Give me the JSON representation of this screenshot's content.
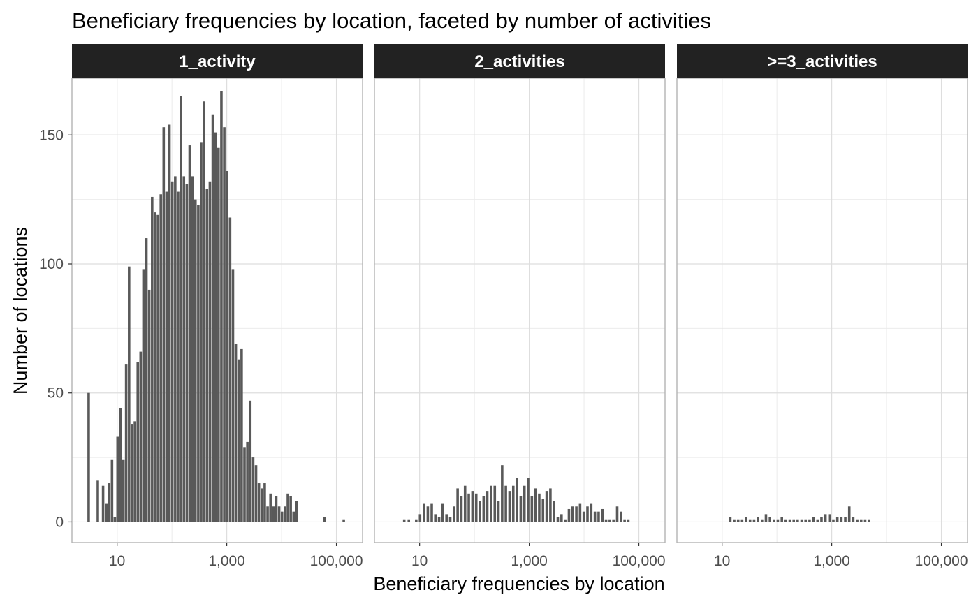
{
  "chart_data": {
    "type": "bar",
    "title": "Beneficiary frequencies by location, faceted by number of activities",
    "xlabel": "Beneficiary frequencies by location",
    "ylabel": "Number of locations",
    "x_scale": "log10",
    "xlim": [
      1.5,
      300000
    ],
    "ylim": [
      -8,
      172
    ],
    "x_ticks": [
      {
        "value": 10,
        "label": "10"
      },
      {
        "value": 1000,
        "label": "1,000"
      },
      {
        "value": 100000,
        "label": "100,000"
      }
    ],
    "y_ticks": [
      {
        "value": 0,
        "label": "0"
      },
      {
        "value": 50,
        "label": "50"
      },
      {
        "value": 100,
        "label": "100"
      },
      {
        "value": 150,
        "label": "150"
      }
    ],
    "grid": true,
    "bar_color": "#595959",
    "strip_color": "#222222",
    "panels": [
      {
        "label": "1_activity",
        "bins": [
          {
            "x": 3.0,
            "count": 50
          },
          {
            "x": 4.4,
            "count": 16
          },
          {
            "x": 5.5,
            "count": 14
          },
          {
            "x": 6.3,
            "count": 7
          },
          {
            "x": 7.1,
            "count": 15
          },
          {
            "x": 8.0,
            "count": 24
          },
          {
            "x": 9.0,
            "count": 2
          },
          {
            "x": 10.1,
            "count": 33
          },
          {
            "x": 11.4,
            "count": 44
          },
          {
            "x": 12.9,
            "count": 24
          },
          {
            "x": 14.5,
            "count": 61
          },
          {
            "x": 16.4,
            "count": 99
          },
          {
            "x": 18.5,
            "count": 38
          },
          {
            "x": 20.9,
            "count": 39
          },
          {
            "x": 23.6,
            "count": 62
          },
          {
            "x": 26.6,
            "count": 66
          },
          {
            "x": 30.0,
            "count": 98
          },
          {
            "x": 33.9,
            "count": 110
          },
          {
            "x": 38.2,
            "count": 90
          },
          {
            "x": 43.2,
            "count": 126
          },
          {
            "x": 48.7,
            "count": 120
          },
          {
            "x": 55.0,
            "count": 119
          },
          {
            "x": 62.1,
            "count": 127
          },
          {
            "x": 70.1,
            "count": 153
          },
          {
            "x": 79.1,
            "count": 128
          },
          {
            "x": 89.3,
            "count": 154
          },
          {
            "x": 100.8,
            "count": 132
          },
          {
            "x": 113.8,
            "count": 134
          },
          {
            "x": 128.5,
            "count": 128
          },
          {
            "x": 145.0,
            "count": 165
          },
          {
            "x": 163.7,
            "count": 134
          },
          {
            "x": 184.8,
            "count": 131
          },
          {
            "x": 208.6,
            "count": 146
          },
          {
            "x": 235.5,
            "count": 134
          },
          {
            "x": 265.9,
            "count": 125
          },
          {
            "x": 300.2,
            "count": 123
          },
          {
            "x": 338.9,
            "count": 147
          },
          {
            "x": 382.5,
            "count": 163
          },
          {
            "x": 431.8,
            "count": 129
          },
          {
            "x": 487.5,
            "count": 132
          },
          {
            "x": 550.3,
            "count": 158
          },
          {
            "x": 621.2,
            "count": 151
          },
          {
            "x": 701.3,
            "count": 145
          },
          {
            "x": 791.7,
            "count": 167
          },
          {
            "x": 893.8,
            "count": 153
          },
          {
            "x": 1009,
            "count": 136
          },
          {
            "x": 1139,
            "count": 118
          },
          {
            "x": 1286,
            "count": 98
          },
          {
            "x": 1451,
            "count": 69
          },
          {
            "x": 1639,
            "count": 63
          },
          {
            "x": 1850,
            "count": 67
          },
          {
            "x": 2088,
            "count": 29
          },
          {
            "x": 2358,
            "count": 31
          },
          {
            "x": 2662,
            "count": 47
          },
          {
            "x": 3005,
            "count": 25
          },
          {
            "x": 3392,
            "count": 22
          },
          {
            "x": 3829,
            "count": 15
          },
          {
            "x": 4323,
            "count": 13
          },
          {
            "x": 4880,
            "count": 15
          },
          {
            "x": 5509,
            "count": 6
          },
          {
            "x": 6219,
            "count": 11
          },
          {
            "x": 7021,
            "count": 6
          },
          {
            "x": 7926,
            "count": 10
          },
          {
            "x": 8948,
            "count": 6
          },
          {
            "x": 10100,
            "count": 4
          },
          {
            "x": 11400,
            "count": 6
          },
          {
            "x": 12880,
            "count": 11
          },
          {
            "x": 14540,
            "count": 10
          },
          {
            "x": 16410,
            "count": 4
          },
          {
            "x": 18530,
            "count": 8
          },
          {
            "x": 60000,
            "count": 2
          },
          {
            "x": 135000,
            "count": 1
          }
        ]
      },
      {
        "label": "2_activities",
        "bins": [
          {
            "x": 5.2,
            "count": 1
          },
          {
            "x": 6.3,
            "count": 1
          },
          {
            "x": 8.6,
            "count": 1
          },
          {
            "x": 10.1,
            "count": 3
          },
          {
            "x": 12.0,
            "count": 7
          },
          {
            "x": 14.0,
            "count": 6
          },
          {
            "x": 16.5,
            "count": 7
          },
          {
            "x": 19.2,
            "count": 3
          },
          {
            "x": 22.5,
            "count": 2
          },
          {
            "x": 26.2,
            "count": 7
          },
          {
            "x": 30.7,
            "count": 3
          },
          {
            "x": 35.9,
            "count": 2
          },
          {
            "x": 41.9,
            "count": 6
          },
          {
            "x": 49.0,
            "count": 13
          },
          {
            "x": 57.3,
            "count": 10
          },
          {
            "x": 66.9,
            "count": 14
          },
          {
            "x": 78.2,
            "count": 11
          },
          {
            "x": 91.4,
            "count": 12
          },
          {
            "x": 107,
            "count": 11
          },
          {
            "x": 125,
            "count": 8
          },
          {
            "x": 146,
            "count": 10
          },
          {
            "x": 170,
            "count": 12
          },
          {
            "x": 199,
            "count": 14
          },
          {
            "x": 233,
            "count": 14
          },
          {
            "x": 272,
            "count": 8
          },
          {
            "x": 318,
            "count": 22
          },
          {
            "x": 371,
            "count": 14
          },
          {
            "x": 434,
            "count": 12
          },
          {
            "x": 507,
            "count": 14
          },
          {
            "x": 593,
            "count": 17
          },
          {
            "x": 693,
            "count": 10
          },
          {
            "x": 810,
            "count": 14
          },
          {
            "x": 946,
            "count": 17
          },
          {
            "x": 1106,
            "count": 10
          },
          {
            "x": 1292,
            "count": 13
          },
          {
            "x": 1510,
            "count": 11
          },
          {
            "x": 1765,
            "count": 9
          },
          {
            "x": 2063,
            "count": 12
          },
          {
            "x": 2411,
            "count": 13
          },
          {
            "x": 2817,
            "count": 8
          },
          {
            "x": 3292,
            "count": 2
          },
          {
            "x": 3847,
            "count": 3
          },
          {
            "x": 4496,
            "count": 1
          },
          {
            "x": 5254,
            "count": 5
          },
          {
            "x": 6140,
            "count": 6
          },
          {
            "x": 7175,
            "count": 6
          },
          {
            "x": 8385,
            "count": 7
          },
          {
            "x": 9799,
            "count": 4
          },
          {
            "x": 11450,
            "count": 6
          },
          {
            "x": 13380,
            "count": 7
          },
          {
            "x": 15640,
            "count": 4
          },
          {
            "x": 18280,
            "count": 4
          },
          {
            "x": 21360,
            "count": 5
          },
          {
            "x": 24960,
            "count": 1
          },
          {
            "x": 29170,
            "count": 1
          },
          {
            "x": 34090,
            "count": 1
          },
          {
            "x": 39840,
            "count": 6
          },
          {
            "x": 46560,
            "count": 4
          },
          {
            "x": 54410,
            "count": 1
          },
          {
            "x": 63580,
            "count": 1
          }
        ]
      },
      {
        "label": ">=3_activities",
        "bins": [
          {
            "x": 14,
            "count": 2
          },
          {
            "x": 16.5,
            "count": 1
          },
          {
            "x": 19.5,
            "count": 1
          },
          {
            "x": 23,
            "count": 1
          },
          {
            "x": 27.2,
            "count": 2
          },
          {
            "x": 32.1,
            "count": 1
          },
          {
            "x": 38,
            "count": 1
          },
          {
            "x": 44.9,
            "count": 2
          },
          {
            "x": 53,
            "count": 1
          },
          {
            "x": 62.6,
            "count": 3
          },
          {
            "x": 74,
            "count": 2
          },
          {
            "x": 87.4,
            "count": 1
          },
          {
            "x": 103,
            "count": 1
          },
          {
            "x": 122,
            "count": 2
          },
          {
            "x": 144,
            "count": 1
          },
          {
            "x": 170,
            "count": 1
          },
          {
            "x": 201,
            "count": 1
          },
          {
            "x": 237,
            "count": 1
          },
          {
            "x": 280,
            "count": 1
          },
          {
            "x": 331,
            "count": 1
          },
          {
            "x": 391,
            "count": 1
          },
          {
            "x": 462,
            "count": 2
          },
          {
            "x": 546,
            "count": 1
          },
          {
            "x": 645,
            "count": 2
          },
          {
            "x": 762,
            "count": 3
          },
          {
            "x": 900,
            "count": 3
          },
          {
            "x": 1063,
            "count": 1
          },
          {
            "x": 1256,
            "count": 2
          },
          {
            "x": 1484,
            "count": 2
          },
          {
            "x": 1753,
            "count": 2
          },
          {
            "x": 2071,
            "count": 6
          },
          {
            "x": 2447,
            "count": 2
          },
          {
            "x": 2891,
            "count": 1
          },
          {
            "x": 3416,
            "count": 1
          },
          {
            "x": 4036,
            "count": 1
          },
          {
            "x": 4768,
            "count": 1
          }
        ]
      }
    ]
  }
}
